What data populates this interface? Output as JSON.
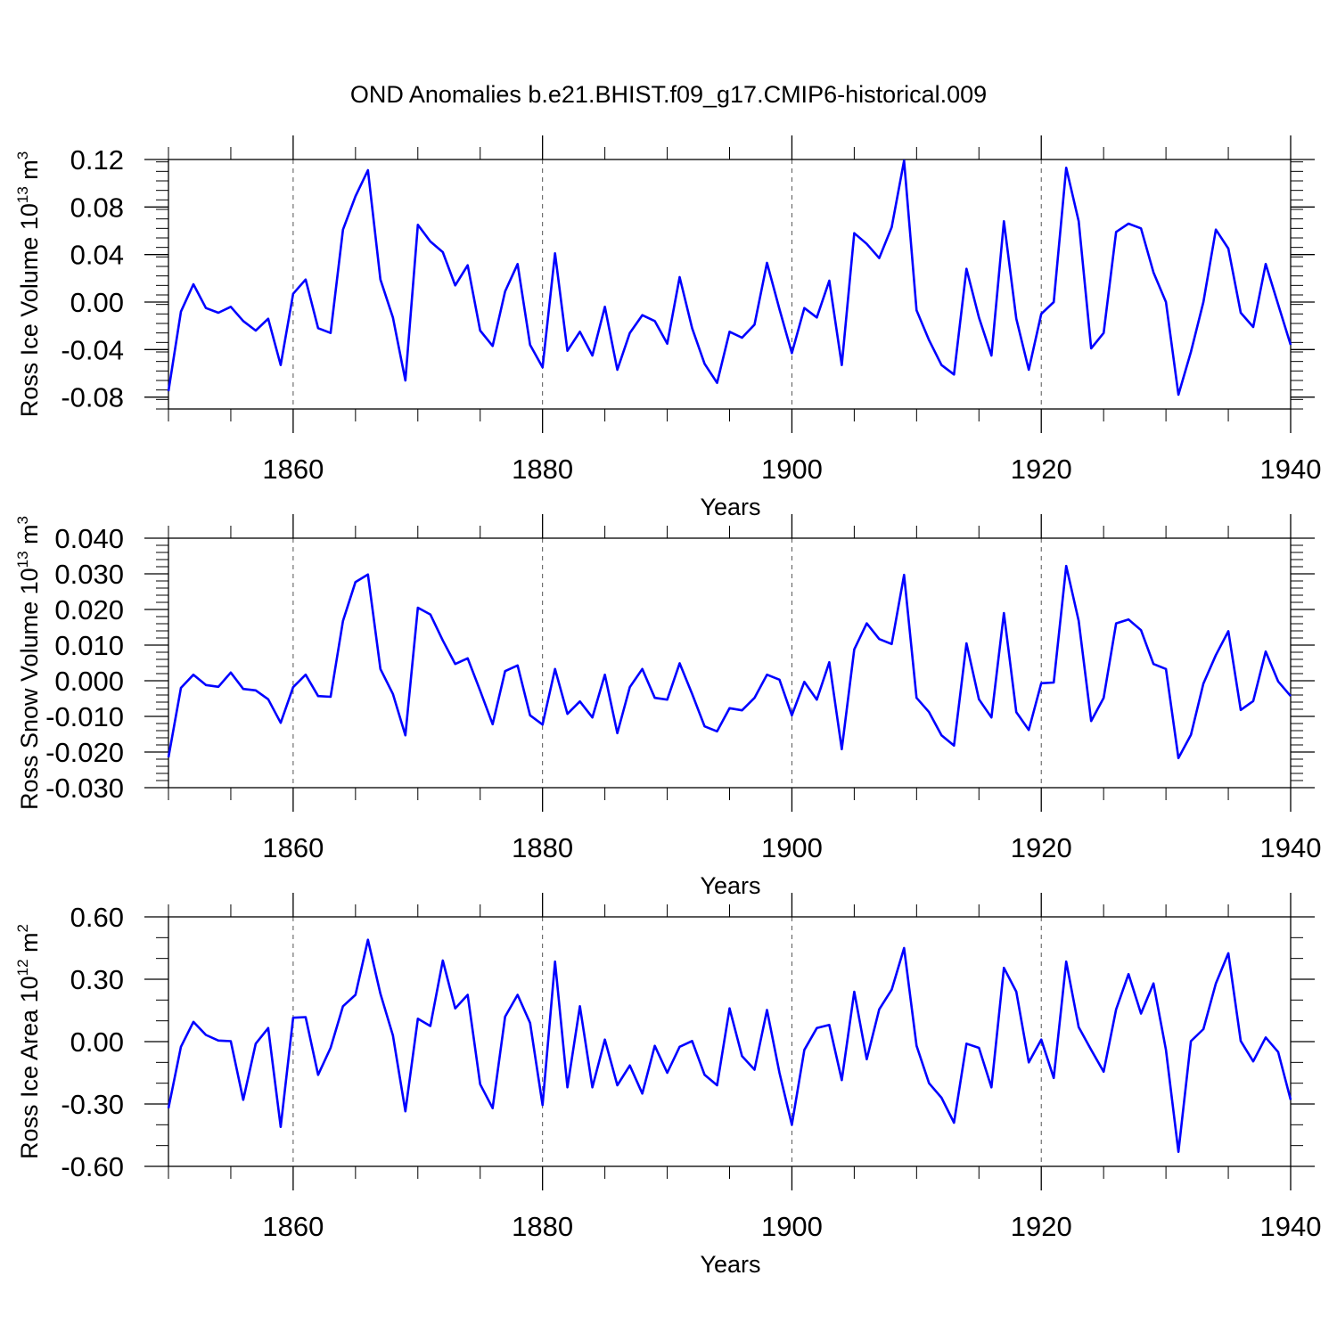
{
  "title": "OND Anomalies b.e21.BHIST.f09_g17.CMIP6-historical.009",
  "line_color": "#0000ff",
  "chart_data": [
    {
      "type": "line",
      "xlabel": "Years",
      "ylabel": "Ross Ice Volume 10",
      "ylabel_exp": "13",
      "ylabel_unit": " m",
      "ylabel_unit_exp": "3",
      "xlim": [
        1850,
        1940
      ],
      "ylim": [
        -0.09,
        0.12
      ],
      "xticks": [
        1860,
        1880,
        1900,
        1920,
        1940
      ],
      "yticks": [
        -0.08,
        -0.04,
        0.0,
        0.04,
        0.08,
        0.12
      ],
      "ytick_labels": [
        "-0.08",
        "-0.04",
        "0.00",
        "0.04",
        "0.08",
        "0.12"
      ],
      "yminor_step": 0.008,
      "x": [
        1850,
        1851,
        1852,
        1853,
        1854,
        1855,
        1856,
        1857,
        1858,
        1859,
        1860,
        1861,
        1862,
        1863,
        1864,
        1865,
        1866,
        1867,
        1868,
        1869,
        1870,
        1871,
        1872,
        1873,
        1874,
        1875,
        1876,
        1877,
        1878,
        1879,
        1880,
        1881,
        1882,
        1883,
        1884,
        1885,
        1886,
        1887,
        1888,
        1889,
        1890,
        1891,
        1892,
        1893,
        1894,
        1895,
        1896,
        1897,
        1898,
        1899,
        1900,
        1901,
        1902,
        1903,
        1904,
        1905,
        1906,
        1907,
        1908,
        1909,
        1910,
        1911,
        1912,
        1913,
        1914,
        1915,
        1916,
        1917,
        1918,
        1919,
        1920,
        1921,
        1922,
        1923,
        1924,
        1925,
        1926,
        1927,
        1928,
        1929,
        1930,
        1931,
        1932,
        1933,
        1934,
        1935,
        1936,
        1937,
        1938,
        1939,
        1940
      ],
      "values": [
        -0.075,
        -0.008,
        0.015,
        -0.005,
        -0.009,
        -0.004,
        -0.016,
        -0.024,
        -0.014,
        -0.053,
        0.007,
        0.019,
        -0.022,
        -0.026,
        0.061,
        0.089,
        0.111,
        0.019,
        -0.013,
        -0.066,
        0.065,
        0.051,
        0.042,
        0.014,
        0.031,
        -0.024,
        -0.037,
        0.009,
        0.032,
        -0.036,
        -0.055,
        0.041,
        -0.041,
        -0.025,
        -0.045,
        -0.004,
        -0.057,
        -0.026,
        -0.011,
        -0.016,
        -0.035,
        0.021,
        -0.022,
        -0.052,
        -0.068,
        -0.025,
        -0.03,
        -0.019,
        0.033,
        -0.006,
        -0.043,
        -0.005,
        -0.013,
        0.018,
        -0.053,
        0.058,
        0.049,
        0.037,
        0.063,
        0.119,
        -0.007,
        -0.032,
        -0.053,
        -0.061,
        0.028,
        -0.013,
        -0.045,
        0.068,
        -0.014,
        -0.057,
        -0.01,
        0.0,
        0.113,
        0.068,
        -0.039,
        -0.026,
        0.059,
        0.066,
        0.062,
        0.025,
        0.0,
        -0.078,
        -0.042,
        0.0,
        0.061,
        0.045,
        -0.009,
        -0.021,
        0.032,
        -0.002,
        -0.036
      ]
    },
    {
      "type": "line",
      "xlabel": "Years",
      "ylabel": "Ross Snow Volume 10",
      "ylabel_exp": "13",
      "ylabel_unit": " m",
      "ylabel_unit_exp": "3",
      "xlim": [
        1850,
        1940
      ],
      "ylim": [
        -0.03,
        0.04
      ],
      "xticks": [
        1860,
        1880,
        1900,
        1920,
        1940
      ],
      "yticks": [
        -0.03,
        -0.02,
        -0.01,
        0.0,
        0.01,
        0.02,
        0.03,
        0.04
      ],
      "ytick_labels": [
        "-0.030",
        "-0.020",
        "-0.010",
        "0.000",
        "0.010",
        "0.020",
        "0.030",
        "0.040"
      ],
      "yminor_step": 0.002,
      "x": [
        1850,
        1851,
        1852,
        1853,
        1854,
        1855,
        1856,
        1857,
        1858,
        1859,
        1860,
        1861,
        1862,
        1863,
        1864,
        1865,
        1866,
        1867,
        1868,
        1869,
        1870,
        1871,
        1872,
        1873,
        1874,
        1875,
        1876,
        1877,
        1878,
        1879,
        1880,
        1881,
        1882,
        1883,
        1884,
        1885,
        1886,
        1887,
        1888,
        1889,
        1890,
        1891,
        1892,
        1893,
        1894,
        1895,
        1896,
        1897,
        1898,
        1899,
        1900,
        1901,
        1902,
        1903,
        1904,
        1905,
        1906,
        1907,
        1908,
        1909,
        1910,
        1911,
        1912,
        1913,
        1914,
        1915,
        1916,
        1917,
        1918,
        1919,
        1920,
        1921,
        1922,
        1923,
        1924,
        1925,
        1926,
        1927,
        1928,
        1929,
        1930,
        1931,
        1932,
        1933,
        1934,
        1935,
        1936,
        1937,
        1938,
        1939,
        1940
      ],
      "values": [
        -0.0215,
        -0.002,
        0.0017,
        -0.0012,
        -0.0017,
        0.0023,
        -0.0023,
        -0.0027,
        -0.0052,
        -0.0118,
        -0.0018,
        0.0017,
        -0.0043,
        -0.0045,
        0.0168,
        0.0277,
        0.0298,
        0.0033,
        -0.0037,
        -0.0153,
        0.0205,
        0.0186,
        0.0113,
        0.0047,
        0.0063,
        -0.0028,
        -0.0122,
        0.0027,
        0.0043,
        -0.0097,
        -0.0123,
        0.0033,
        -0.0093,
        -0.0058,
        -0.0103,
        0.0017,
        -0.0147,
        -0.0018,
        0.0033,
        -0.0048,
        -0.0053,
        0.0049,
        -0.0037,
        -0.0128,
        -0.0142,
        -0.0077,
        -0.0083,
        -0.0048,
        0.0017,
        0.0003,
        -0.0097,
        -0.0003,
        -0.0053,
        0.0052,
        -0.0192,
        0.0088,
        0.0161,
        0.0117,
        0.0103,
        0.0297,
        -0.0048,
        -0.0088,
        -0.0153,
        -0.0182,
        0.0105,
        -0.0052,
        -0.0103,
        0.019,
        -0.0088,
        -0.0138,
        -0.0007,
        -0.0005,
        0.0322,
        0.0168,
        -0.0113,
        -0.0048,
        0.0161,
        0.0172,
        0.0142,
        0.0047,
        0.0033,
        -0.0217,
        -0.0152,
        -0.0008,
        0.0072,
        0.0139,
        -0.0082,
        -0.0057,
        0.0082,
        -0.0002,
        -0.0043
      ]
    },
    {
      "type": "line",
      "xlabel": "Years",
      "ylabel": "Ross Ice Area 10",
      "ylabel_exp": "12",
      "ylabel_unit": " m",
      "ylabel_unit_exp": "2",
      "xlim": [
        1850,
        1940
      ],
      "ylim": [
        -0.6,
        0.6
      ],
      "xticks": [
        1860,
        1880,
        1900,
        1920,
        1940
      ],
      "yticks": [
        -0.6,
        -0.3,
        0.0,
        0.3,
        0.6
      ],
      "ytick_labels": [
        "-0.60",
        "-0.30",
        "0.00",
        "0.30",
        "0.60"
      ],
      "yminor_step": 0.1,
      "x": [
        1850,
        1851,
        1852,
        1853,
        1854,
        1855,
        1856,
        1857,
        1858,
        1859,
        1860,
        1861,
        1862,
        1863,
        1864,
        1865,
        1866,
        1867,
        1868,
        1869,
        1870,
        1871,
        1872,
        1873,
        1874,
        1875,
        1876,
        1877,
        1878,
        1879,
        1880,
        1881,
        1882,
        1883,
        1884,
        1885,
        1886,
        1887,
        1888,
        1889,
        1890,
        1891,
        1892,
        1893,
        1894,
        1895,
        1896,
        1897,
        1898,
        1899,
        1900,
        1901,
        1902,
        1903,
        1904,
        1905,
        1906,
        1907,
        1908,
        1909,
        1910,
        1911,
        1912,
        1913,
        1914,
        1915,
        1916,
        1917,
        1918,
        1919,
        1920,
        1921,
        1922,
        1923,
        1924,
        1925,
        1926,
        1927,
        1928,
        1929,
        1930,
        1931,
        1932,
        1933,
        1934,
        1935,
        1936,
        1937,
        1938,
        1939,
        1940
      ],
      "values": [
        -0.32,
        -0.025,
        0.095,
        0.032,
        0.005,
        0.002,
        -0.28,
        -0.01,
        0.065,
        -0.41,
        0.115,
        0.118,
        -0.16,
        -0.03,
        0.17,
        0.225,
        0.49,
        0.23,
        0.03,
        -0.335,
        0.11,
        0.075,
        0.39,
        0.16,
        0.225,
        -0.205,
        -0.32,
        0.12,
        0.225,
        0.09,
        -0.305,
        0.385,
        -0.22,
        0.17,
        -0.22,
        0.01,
        -0.21,
        -0.115,
        -0.25,
        -0.02,
        -0.15,
        -0.025,
        0.003,
        -0.16,
        -0.21,
        0.16,
        -0.07,
        -0.135,
        0.152,
        -0.15,
        -0.4,
        -0.04,
        0.065,
        0.08,
        -0.185,
        0.24,
        -0.085,
        0.155,
        0.25,
        0.45,
        -0.02,
        -0.2,
        -0.27,
        -0.39,
        -0.01,
        -0.03,
        -0.22,
        0.355,
        0.24,
        -0.1,
        0.01,
        -0.175,
        0.385,
        0.07,
        -0.04,
        -0.145,
        0.155,
        0.325,
        0.135,
        0.28,
        -0.04,
        -0.53,
        0.002,
        0.06,
        0.28,
        0.425,
        0.003,
        -0.095,
        0.02,
        -0.05,
        -0.28
      ]
    }
  ]
}
